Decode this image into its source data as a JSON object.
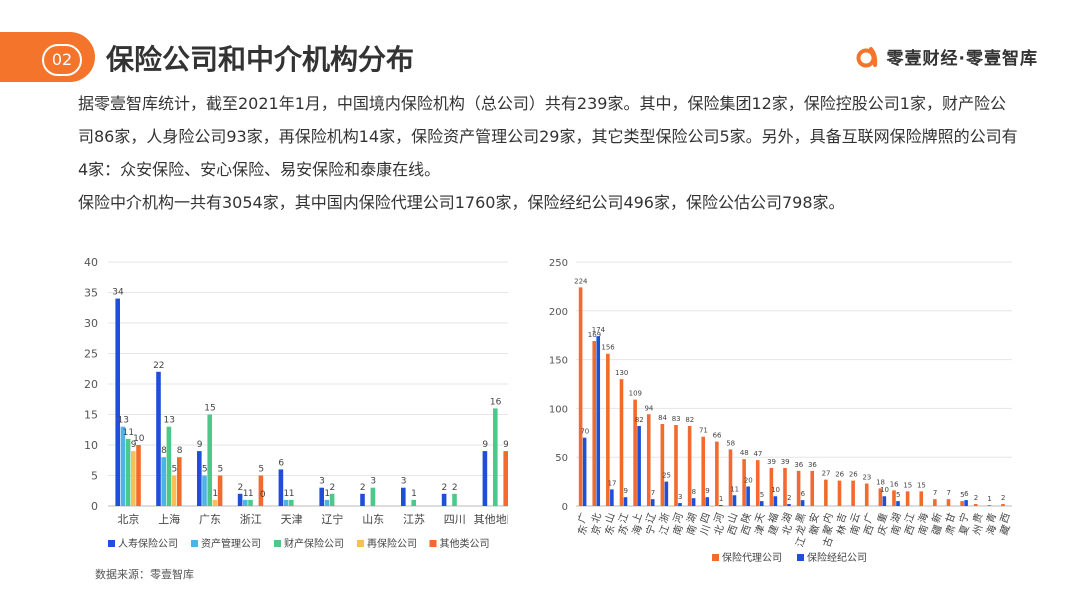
{
  "header": {
    "badge": "02",
    "title": "保险公司和中介机构分布",
    "brand": "零壹财经·零壹智库",
    "brand_color": "#f5742c"
  },
  "text": {
    "para1": "据零壹智库统计，截至2021年1月，中国境内保险机构（总公司）共有239家。其中，保险集团12家，保险控股公司1家，财产险公司86家，人身险公司93家，再保险机构14家，保险资产管理公司29家，其它类型保险公司5家。另外，具备互联网保险牌照的公司有4家：众安保险、安心保险、易安保险和泰康在线。",
    "para2": "保险中介机构一共有3054家，其中国内保险代理公司1760家，保险经纪公司496家，保险公估公司798家。",
    "source": "数据来源：零壹智库"
  },
  "chart_data": [
    {
      "type": "bar",
      "categories": [
        "北京",
        "上海",
        "广东",
        "浙江",
        "天津",
        "辽宁",
        "山东",
        "江苏",
        "四川",
        "其他地区"
      ],
      "ylim": [
        0,
        40
      ],
      "yticks": [
        0,
        5,
        10,
        15,
        20,
        25,
        30,
        35,
        40
      ],
      "grid": true,
      "legend": "bottom",
      "series": [
        {
          "name": "人寿保险公司",
          "color": "#1f4fd8",
          "values": [
            34,
            22,
            9,
            2,
            6,
            3,
            2,
            3,
            2,
            9
          ]
        },
        {
          "name": "资产管理公司",
          "color": "#4fb3e8",
          "values": [
            13,
            8,
            5,
            1,
            1,
            1,
            null,
            null,
            null,
            null
          ]
        },
        {
          "name": "财产保险公司",
          "color": "#4cc98a",
          "values": [
            11,
            13,
            15,
            1,
            1,
            2,
            3,
            1,
            2,
            16
          ]
        },
        {
          "name": "再保险公司",
          "color": "#f7bf55",
          "values": [
            9,
            5,
            1,
            null,
            null,
            null,
            null,
            null,
            null,
            null
          ]
        },
        {
          "name": "其他类公司",
          "color": "#f26a2e",
          "values": [
            10,
            8,
            5,
            5,
            null,
            null,
            null,
            null,
            null,
            9
          ]
        }
      ],
      "extra_labels": [
        {
          "category": "浙江",
          "text": "0"
        }
      ]
    },
    {
      "type": "bar",
      "categories": [
        "广东",
        "北京",
        "山东",
        "江苏",
        "上海",
        "辽宁",
        "浙江",
        "河南",
        "湖南",
        "四川",
        "河北",
        "山西",
        "陕西",
        "天津",
        "福建",
        "湖北",
        "黑龙江",
        "安徽",
        "内蒙古",
        "吉林",
        "云南",
        "广西",
        "重庆",
        "湖南",
        "江西",
        "海南",
        "新疆",
        "甘肃",
        "宁夏",
        "贵州",
        "青海",
        "西藏"
      ],
      "ylim": [
        0,
        250
      ],
      "yticks": [
        0,
        50,
        100,
        150,
        200,
        250
      ],
      "grid": true,
      "legend": "bottom",
      "series": [
        {
          "name": "保险代理公司",
          "color": "#f26a2e",
          "values": [
            224,
            169,
            156,
            130,
            109,
            94,
            84,
            83,
            82,
            71,
            66,
            58,
            48,
            47,
            39,
            39,
            36,
            36,
            27,
            26,
            26,
            23,
            18,
            16,
            15,
            15,
            7,
            7,
            5,
            2,
            1,
            2
          ]
        },
        {
          "name": "保险经纪公司",
          "color": "#1f4fd8",
          "values": [
            70,
            174,
            17,
            9,
            82,
            7,
            25,
            3,
            8,
            9,
            1,
            11,
            20,
            5,
            10,
            2,
            6,
            null,
            null,
            null,
            null,
            null,
            10,
            5,
            null,
            null,
            null,
            null,
            6,
            null,
            null,
            null
          ]
        }
      ]
    }
  ]
}
